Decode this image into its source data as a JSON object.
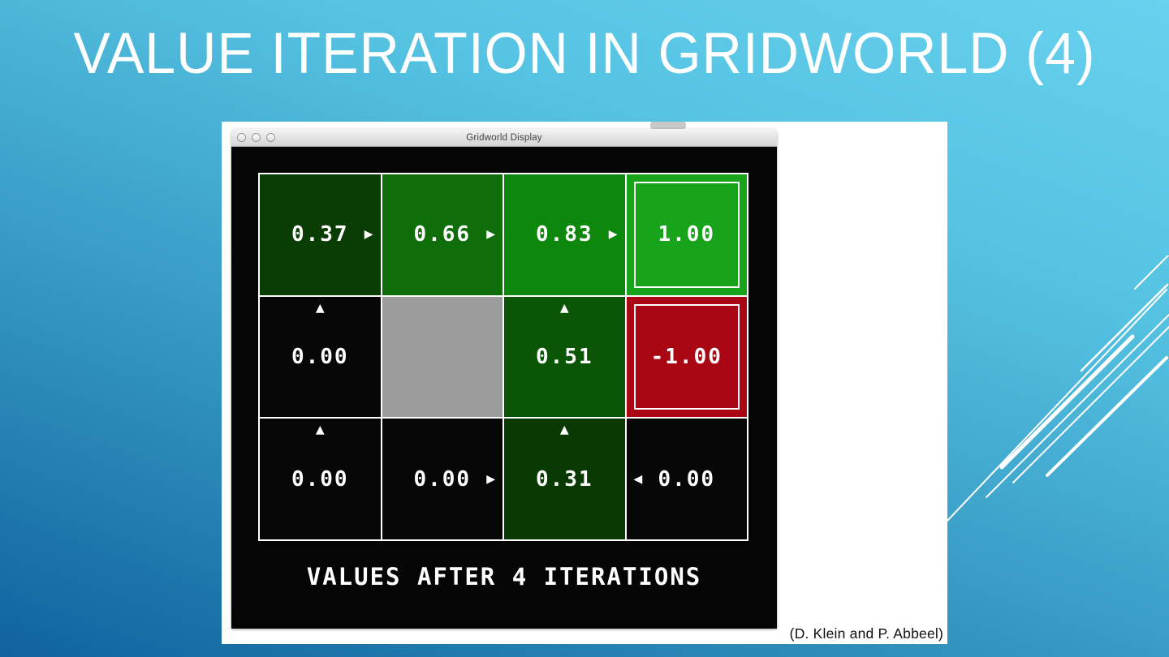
{
  "slide": {
    "title": "VALUE ITERATION IN GRIDWORLD (4)",
    "attribution": "(D. Klein and P. Abbeel)"
  },
  "window": {
    "title": "Gridworld Display",
    "caption": "VALUES AFTER 4 ITERATIONS",
    "controls": [
      "close",
      "minimize",
      "zoom"
    ]
  },
  "colors": {
    "slide_gradient_top": "#67d2ee",
    "slide_gradient_bottom": "#0f639e",
    "canvas_black": "#050505",
    "grid_line": "#ffffff",
    "wall_gray": "#9b9b9b",
    "exit_positive_green": "#17a41b",
    "exit_negative_red": "#a90713",
    "decor_line": "#ffffff"
  },
  "arrow_glyphs": {
    "north": "▲",
    "east": "▶",
    "west": "◀",
    "south": "▼"
  },
  "grid": {
    "rows": 3,
    "cols": 4,
    "cells": [
      [
        {
          "value": "0.37",
          "arrow": "east",
          "bg": "#0a3d04"
        },
        {
          "value": "0.66",
          "arrow": "east",
          "bg": "#0f6e0a"
        },
        {
          "value": "0.83",
          "arrow": "east",
          "bg": "#0e870d"
        },
        {
          "value": "1.00",
          "arrow": null,
          "bg": "#17a41b",
          "exit": true
        }
      ],
      [
        {
          "value": "0.00",
          "arrow": "north",
          "bg": "#070707"
        },
        {
          "wall": true,
          "bg": "#9b9b9b"
        },
        {
          "value": "0.51",
          "arrow": "north",
          "bg": "#0b5506"
        },
        {
          "value": "-1.00",
          "arrow": null,
          "bg": "#a90713",
          "exit": true
        }
      ],
      [
        {
          "value": "0.00",
          "arrow": "north",
          "bg": "#070707"
        },
        {
          "value": "0.00",
          "arrow": "east",
          "bg": "#070707"
        },
        {
          "value": "0.31",
          "arrow": "north",
          "bg": "#093a04"
        },
        {
          "value": "0.00",
          "arrow": "west",
          "bg": "#070707"
        }
      ]
    ]
  }
}
